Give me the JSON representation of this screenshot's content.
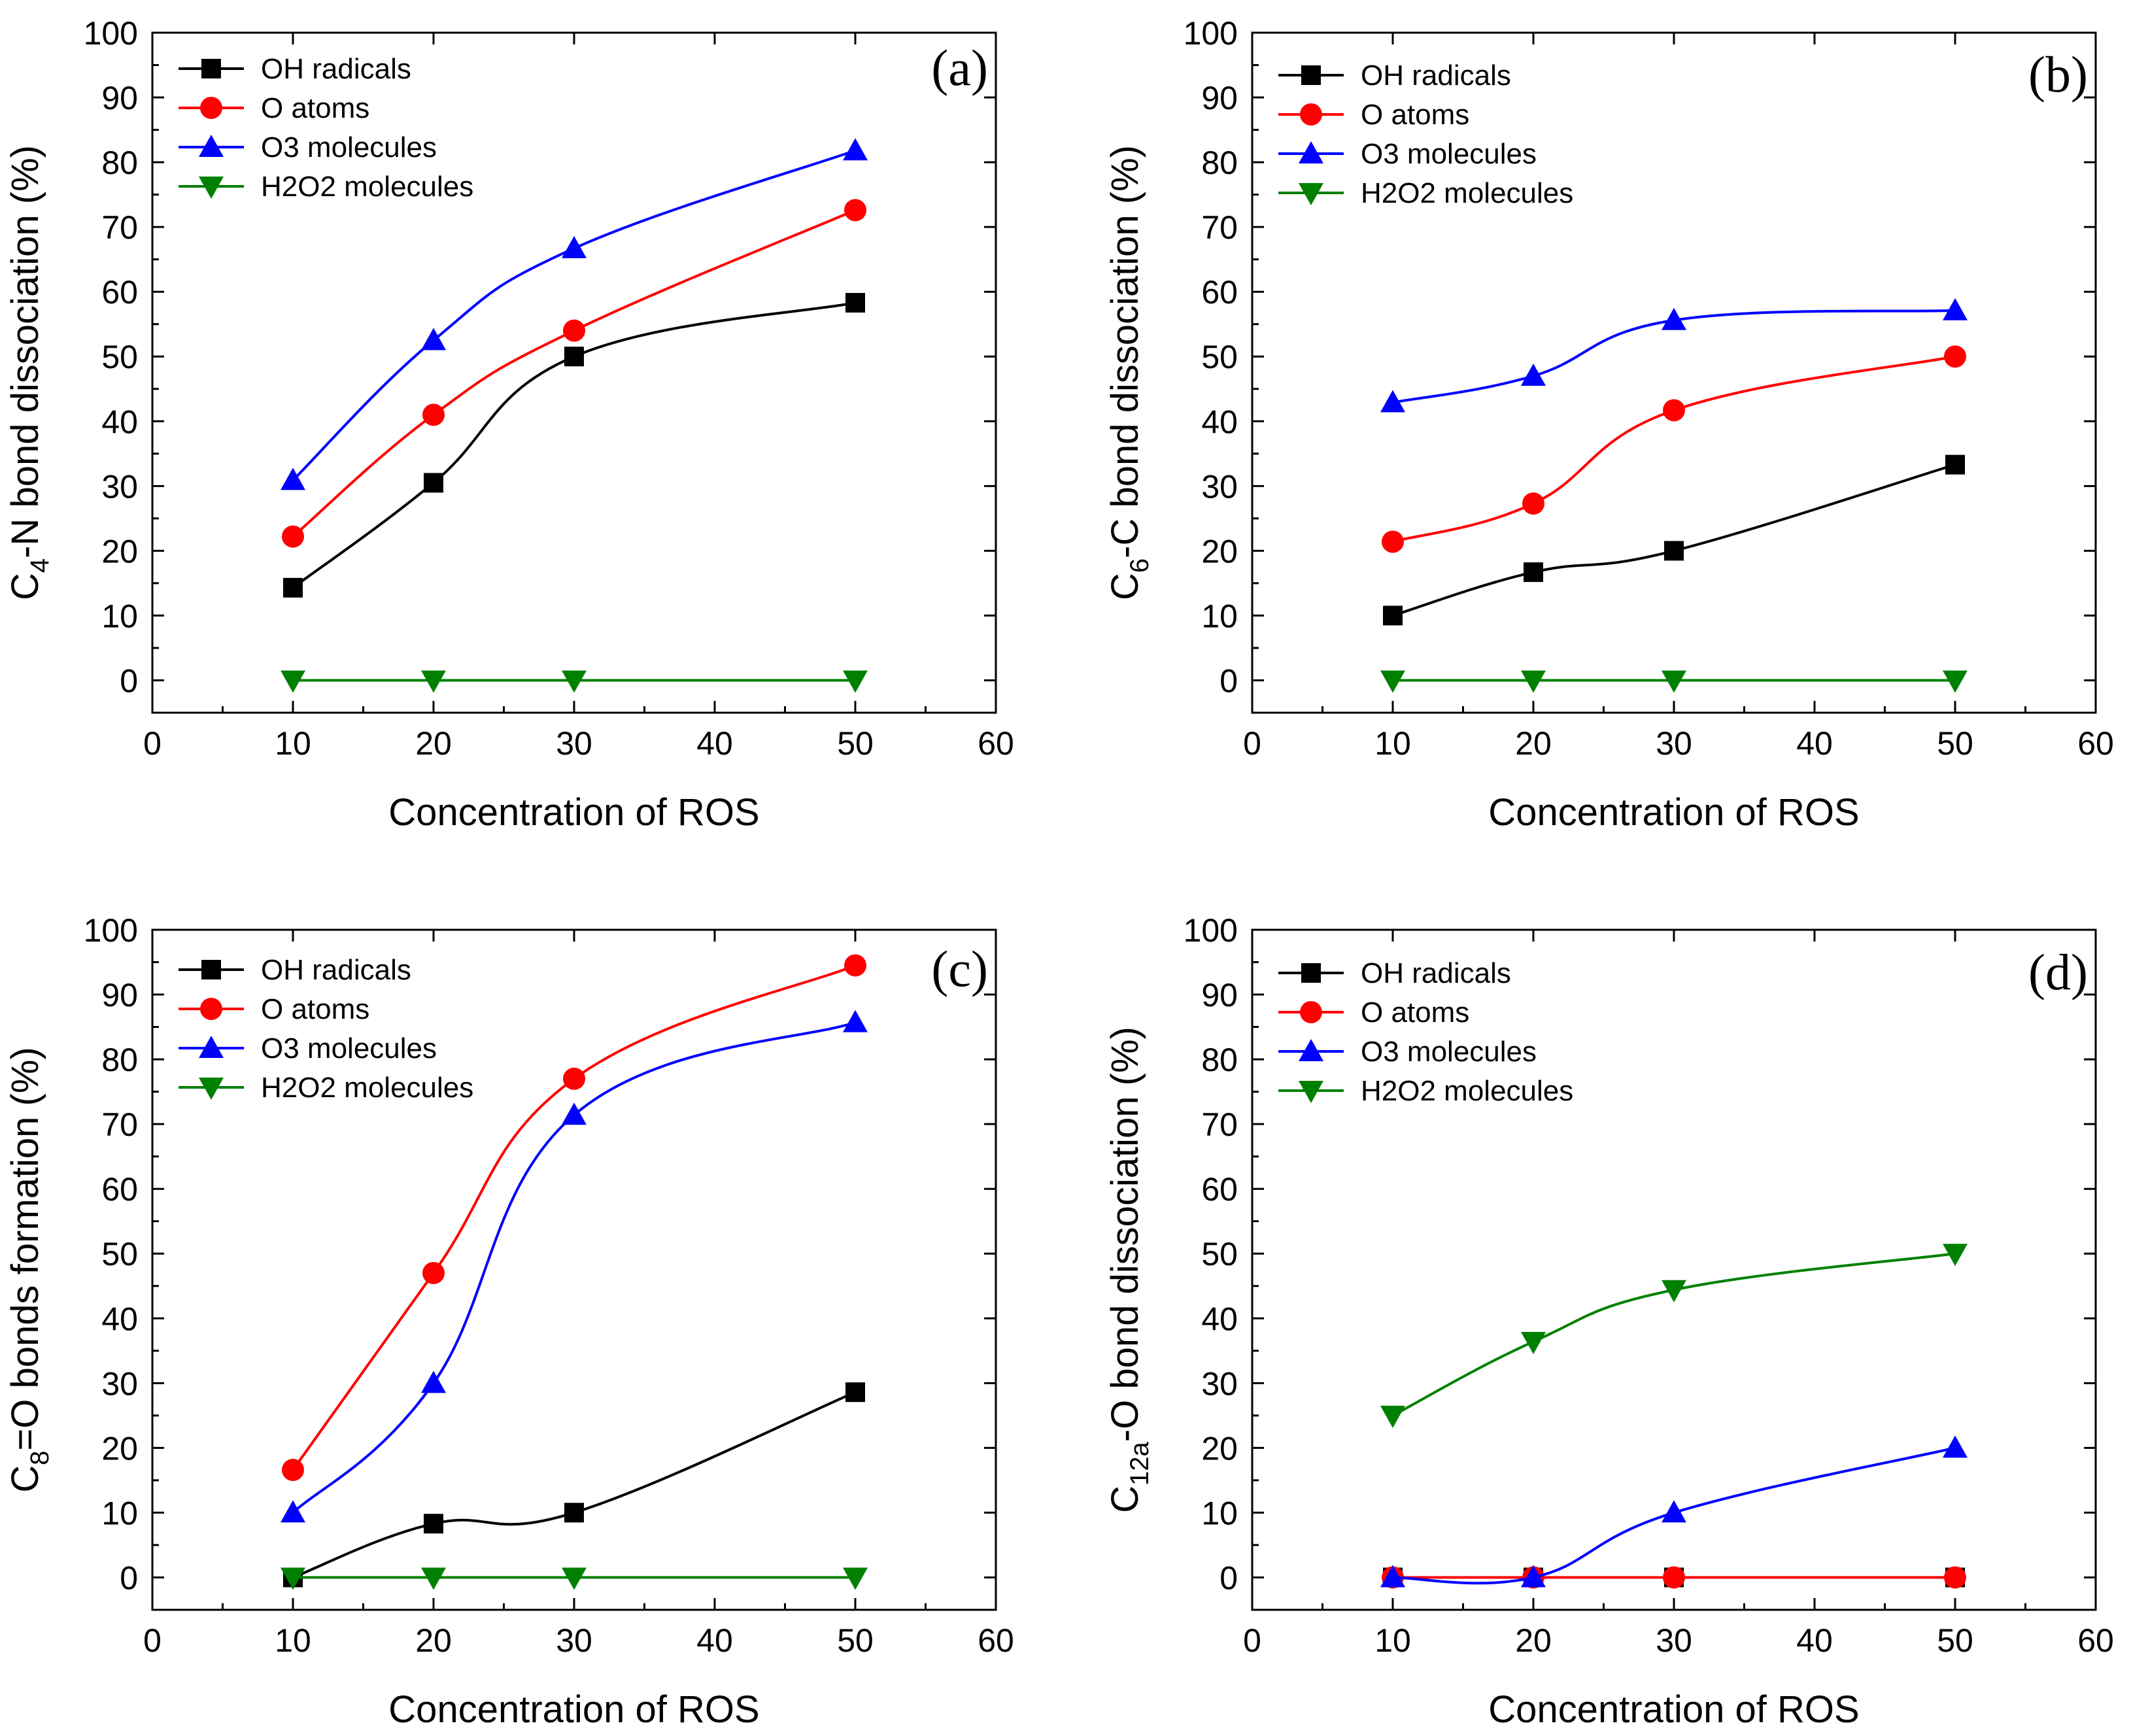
{
  "figure": {
    "series_styles": [
      {
        "name": "OH radicals",
        "color": "#000000",
        "marker": "square"
      },
      {
        "name": "O atoms",
        "color": "#ff0000",
        "marker": "circle"
      },
      {
        "name": "O3 molecules",
        "color": "#0000ff",
        "marker": "triangle-up"
      },
      {
        "name": "H2O2 molecules",
        "color": "#008000",
        "marker": "triangle-down"
      }
    ]
  },
  "chart_data": [
    {
      "type": "line",
      "panel": "(a)",
      "xlabel": "Concentration of ROS",
      "ylabel": {
        "base": "C",
        "sub": "4",
        "rest": "-N bond dissociation (%)"
      },
      "xlim": [
        0,
        60
      ],
      "ylim": [
        -5,
        100
      ],
      "xticks": [
        0,
        10,
        20,
        30,
        40,
        50,
        60
      ],
      "yticks": [
        0,
        10,
        20,
        30,
        40,
        50,
        60,
        70,
        80,
        90,
        100
      ],
      "x": [
        10,
        20,
        30,
        50
      ],
      "series": [
        {
          "name": "OH radicals",
          "values": [
            14.3,
            30.5,
            50.0,
            58.3
          ]
        },
        {
          "name": "O atoms",
          "values": [
            22.2,
            41.0,
            54.0,
            72.6
          ]
        },
        {
          "name": "O3 molecules",
          "values": [
            30.9,
            52.5,
            66.7,
            81.8
          ]
        },
        {
          "name": "H2O2 molecules",
          "values": [
            0,
            0,
            0,
            0
          ]
        }
      ]
    },
    {
      "type": "line",
      "panel": "(b)",
      "xlabel": "Concentration of ROS",
      "ylabel": {
        "base": "C",
        "sub": "6",
        "rest": "-C bond dissociation (%)"
      },
      "xlim": [
        0,
        60
      ],
      "ylim": [
        -5,
        100
      ],
      "xticks": [
        0,
        10,
        20,
        30,
        40,
        50,
        60
      ],
      "yticks": [
        0,
        10,
        20,
        30,
        40,
        50,
        60,
        70,
        80,
        90,
        100
      ],
      "x": [
        10,
        20,
        30,
        50
      ],
      "series": [
        {
          "name": "OH radicals",
          "values": [
            10.0,
            16.7,
            20.0,
            33.3
          ]
        },
        {
          "name": "O atoms",
          "values": [
            21.4,
            27.3,
            41.7,
            50.0
          ]
        },
        {
          "name": "O3 molecules",
          "values": [
            42.9,
            47.0,
            55.6,
            57.1
          ]
        },
        {
          "name": "H2O2 molecules",
          "values": [
            0,
            0,
            0,
            0
          ]
        }
      ]
    },
    {
      "type": "line",
      "panel": "(c)",
      "xlabel": "Concentration of ROS",
      "ylabel": {
        "base": "C",
        "sub": "8",
        "rest": "=O bonds formation (%)"
      },
      "xlim": [
        0,
        60
      ],
      "ylim": [
        -5,
        100
      ],
      "xticks": [
        0,
        10,
        20,
        30,
        40,
        50,
        60
      ],
      "yticks": [
        0,
        10,
        20,
        30,
        40,
        50,
        60,
        70,
        80,
        90,
        100
      ],
      "x": [
        10,
        20,
        30,
        50
      ],
      "series": [
        {
          "name": "OH radicals",
          "values": [
            0,
            8.3,
            10.0,
            28.6
          ]
        },
        {
          "name": "O atoms",
          "values": [
            16.6,
            47.0,
            77.0,
            94.5
          ]
        },
        {
          "name": "O3 molecules",
          "values": [
            10.0,
            30.0,
            71.4,
            85.7
          ]
        },
        {
          "name": "H2O2 molecules",
          "values": [
            0,
            0,
            0,
            0
          ]
        }
      ]
    },
    {
      "type": "line",
      "panel": "(d)",
      "xlabel": "Concentration of ROS",
      "ylabel": {
        "base": "C",
        "sub": "12a",
        "rest": "-O bond dissociation (%)"
      },
      "xlim": [
        0,
        60
      ],
      "ylim": [
        -5,
        100
      ],
      "xticks": [
        0,
        10,
        20,
        30,
        40,
        50,
        60
      ],
      "yticks": [
        0,
        10,
        20,
        30,
        40,
        50,
        60,
        70,
        80,
        90,
        100
      ],
      "x": [
        10,
        20,
        30,
        50
      ],
      "series": [
        {
          "name": "OH radicals",
          "values": [
            0,
            0,
            0,
            0
          ]
        },
        {
          "name": "O atoms",
          "values": [
            0,
            0,
            0,
            0
          ]
        },
        {
          "name": "O3 molecules",
          "values": [
            0,
            0,
            10.0,
            20.0
          ]
        },
        {
          "name": "H2O2 molecules",
          "values": [
            25.0,
            36.4,
            44.4,
            50.0
          ]
        }
      ]
    }
  ]
}
